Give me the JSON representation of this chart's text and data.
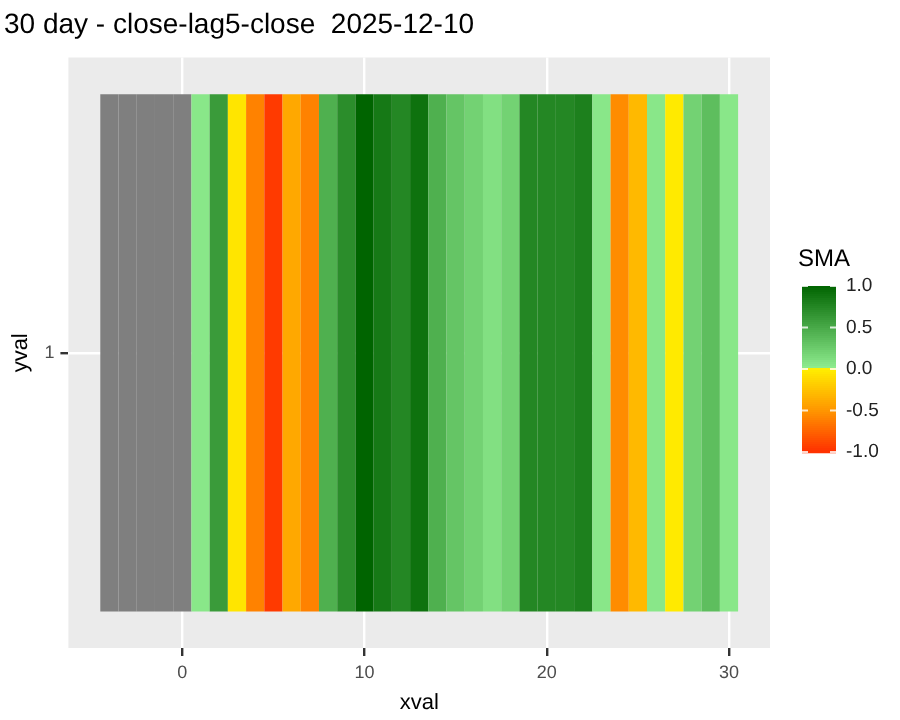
{
  "chart_data": {
    "type": "heatmap",
    "title": "30 day - close-lag5-close  2025-12-10",
    "xlabel": "xval",
    "ylabel": "yval",
    "clabel": "SMA",
    "x": [
      -4,
      -3,
      -2,
      -1,
      0,
      1,
      2,
      3,
      4,
      5,
      6,
      7,
      8,
      9,
      10,
      11,
      12,
      13,
      14,
      15,
      16,
      17,
      18,
      19,
      20,
      21,
      22,
      23,
      24,
      25,
      26,
      27,
      28,
      29,
      30
    ],
    "y_categories": [
      "1"
    ],
    "cells": [
      [
        null,
        null,
        null,
        null,
        null,
        0.05,
        0.6,
        -0.05,
        -0.6,
        -0.95,
        -0.4,
        -0.6,
        0.45,
        0.7,
        1.0,
        0.85,
        0.75,
        0.9,
        0.45,
        0.3,
        0.2,
        0.1,
        0.2,
        0.75,
        0.75,
        0.75,
        0.8,
        0.05,
        -0.55,
        -0.3,
        0.05,
        -0.02,
        0.2,
        0.35,
        0.05
      ]
    ],
    "xlim": [
      -6.25,
      32.25
    ],
    "xticks": [
      0,
      10,
      20,
      30
    ],
    "clim": [
      -1,
      1
    ],
    "cticks": [
      {
        "value": -1,
        "label": "-1.0"
      },
      -0.5,
      {
        "value": 0,
        "label": "0.0"
      },
      0.5,
      {
        "value": 1,
        "label": "1.0"
      }
    ],
    "grid": true
  }
}
